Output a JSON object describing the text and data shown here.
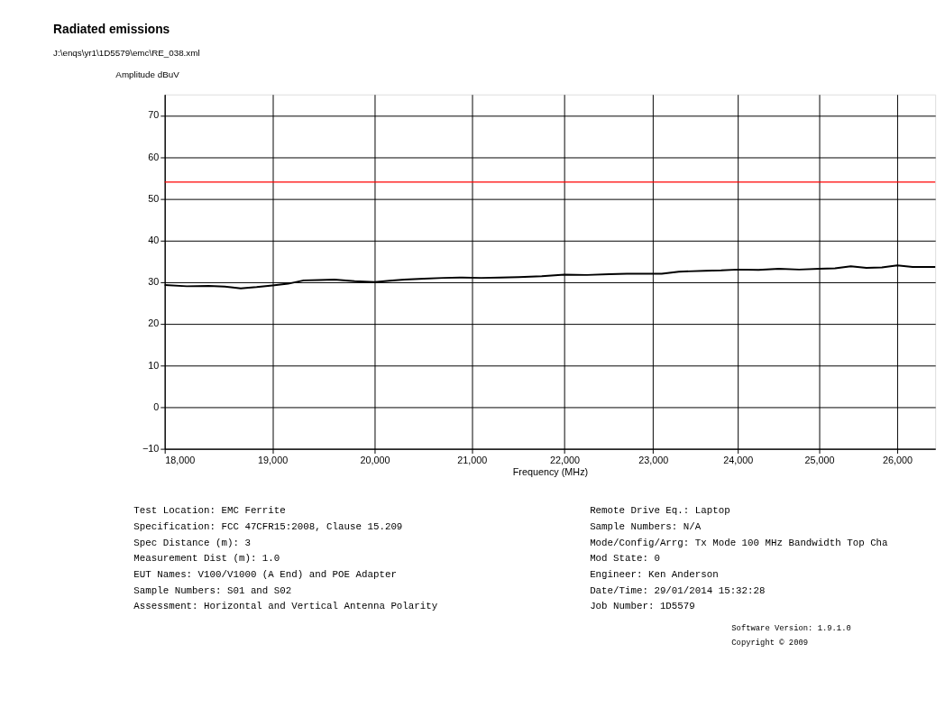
{
  "chart_data": {
    "type": "line",
    "title": "Radiated emissions",
    "subtitle": "J:\\enqs\\yr1\\1D5579\\emc\\RE_038.xml",
    "xlabel": "Frequency (MHz)",
    "ylabel": "Amplitude dBuV",
    "log": "x",
    "grid": true,
    "xlim": [
      18000,
      26500
    ],
    "ylim": [
      -10,
      75
    ],
    "xticks": [
      {
        "value": 18000,
        "label": "18,000"
      },
      {
        "value": 19000,
        "label": "19,000"
      },
      {
        "value": 20000,
        "label": "20,000"
      },
      {
        "value": 21000,
        "label": "21,000"
      },
      {
        "value": 22000,
        "label": "22,000"
      },
      {
        "value": 23000,
        "label": "23,000"
      },
      {
        "value": 24000,
        "label": "24,000"
      },
      {
        "value": 25000,
        "label": "25,000"
      },
      {
        "value": 26000,
        "label": "26,000"
      }
    ],
    "yticks": [
      -10,
      0,
      10,
      20,
      30,
      40,
      50,
      60,
      70
    ],
    "series": [
      {
        "color": "#000000",
        "x": [
          18000,
          18200,
          18400,
          18550,
          18700,
          18850,
          19000,
          19150,
          19300,
          19450,
          19600,
          19800,
          20000,
          20150,
          20300,
          20500,
          20700,
          20900,
          21100,
          21300,
          21500,
          21750,
          22000,
          22250,
          22500,
          22700,
          22900,
          23100,
          23300,
          23600,
          23800,
          24000,
          24250,
          24500,
          24750,
          25000,
          25200,
          25400,
          25600,
          25800,
          26000,
          26200,
          26500
        ],
        "values": [
          29.3,
          29.0,
          29.1,
          28.9,
          28.5,
          28.8,
          29.2,
          29.6,
          30.4,
          30.5,
          30.6,
          30.2,
          30.0,
          30.3,
          30.6,
          30.8,
          31.0,
          31.1,
          31.0,
          31.1,
          31.2,
          31.4,
          31.8,
          31.7,
          31.9,
          32.0,
          32.0,
          32.0,
          32.5,
          32.7,
          32.8,
          33.0,
          32.9,
          33.2,
          33.0,
          33.2,
          33.3,
          33.8,
          33.4,
          33.5,
          34.0,
          33.6,
          33.6
        ]
      }
    ],
    "ref_lines": [
      {
        "axis": "y",
        "value": 54,
        "color": "#ff0000"
      }
    ],
    "annotations": [
      "Test Location:         EMC Ferrite",
      "Specification:         FCC 47CFR15:2008, Clause 15.209",
      "Spec Distance (m):     3",
      "Measurement Dist (m):  1.0",
      "EUT Names:             V100/V1000 (A End) and POE Adapter",
      "Sample Numbers:        S01 and S02",
      "Assessment:            Horizontal and Vertical Antenna Polarity",
      "Remote Drive Eq.: Laptop",
      "Sample Numbers:    N/A",
      "Mode/Config/Arrg: Tx Mode 100 MHz Bandwidth Top Cha",
      "Mod State:         0",
      "Engineer:          Ken Anderson",
      "Date/Time:         29/01/2014 15:32:28",
      "Job Number:        1D5579",
      "Software Version: 1.9.1.0",
      "Copyright © 2009"
    ]
  }
}
